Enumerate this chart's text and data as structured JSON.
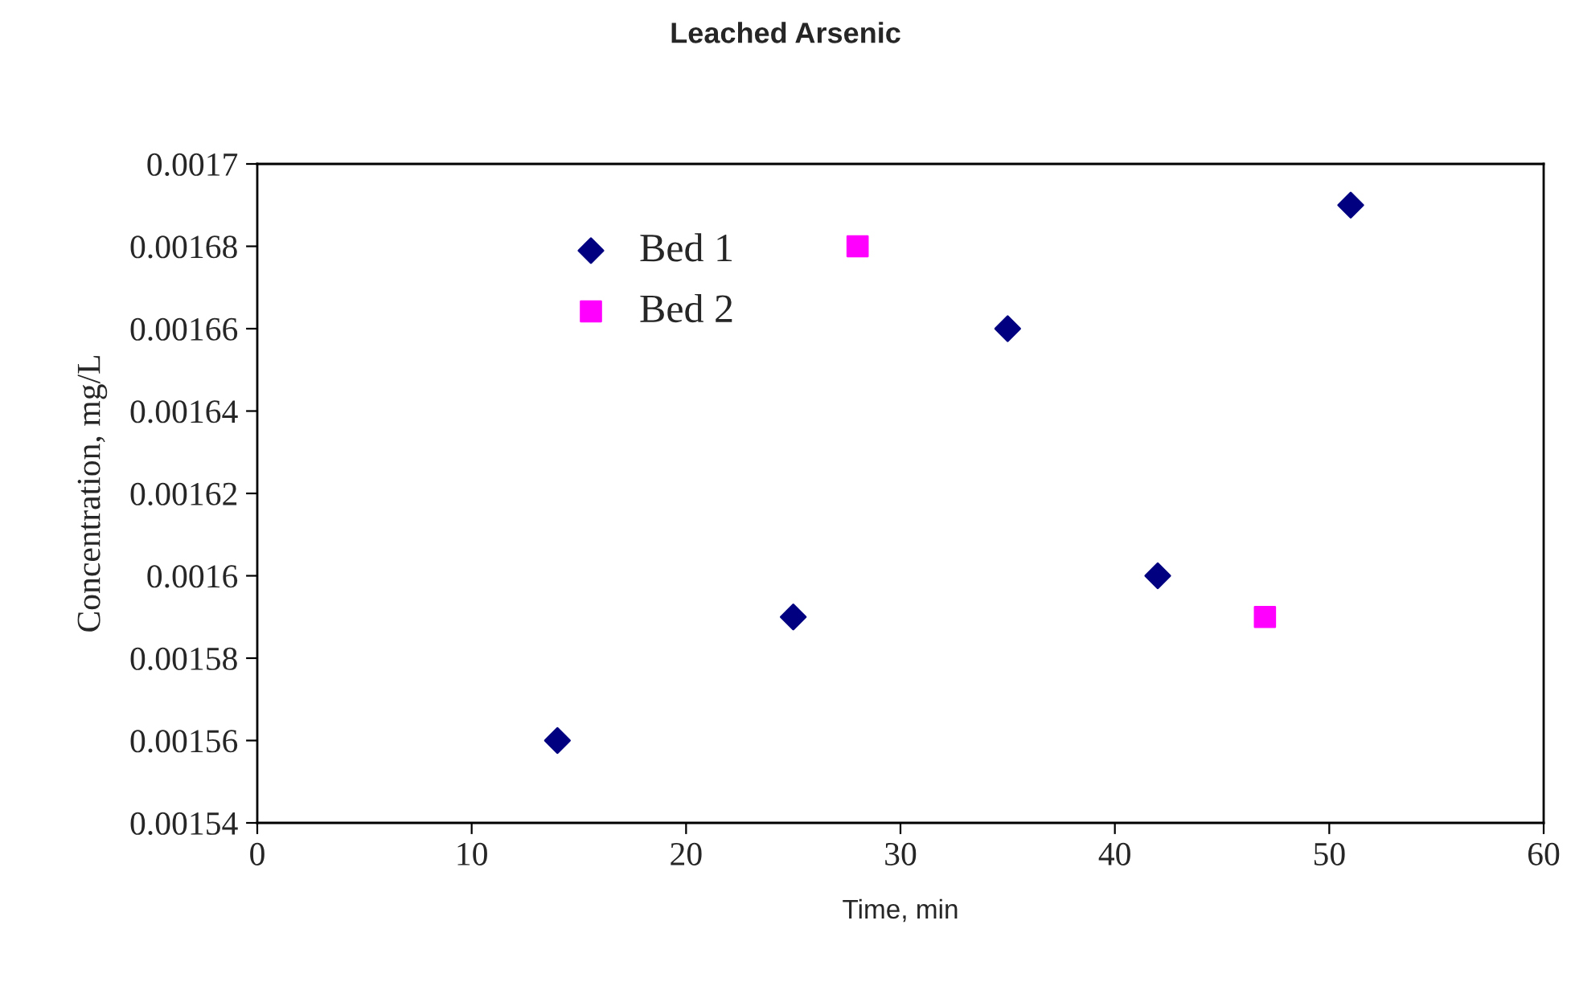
{
  "chart_data": {
    "type": "scatter",
    "title": "Leached Arsenic",
    "xlabel": "Time, min",
    "ylabel": "Concentration, mg/L",
    "series": [
      {
        "name": "Bed 1",
        "color": "#000080",
        "marker": "diamond",
        "x": [
          14,
          25,
          35,
          42,
          51
        ],
        "values": [
          0.00156,
          0.00159,
          0.00166,
          0.0016,
          0.00169
        ]
      },
      {
        "name": "Bed 2",
        "color": "#ff00ff",
        "marker": "square",
        "x": [
          28,
          47
        ],
        "values": [
          0.00168,
          0.00159
        ]
      }
    ],
    "xlim": [
      0,
      60
    ],
    "xticks": [
      0,
      10,
      20,
      30,
      40,
      50,
      60
    ],
    "ylim": [
      0.00154,
      0.0017
    ],
    "yticks": [
      0.00154,
      0.00156,
      0.00158,
      0.0016,
      0.00162,
      0.00164,
      0.00166,
      0.00168,
      0.0017
    ],
    "grid": false,
    "legend": "top left"
  }
}
